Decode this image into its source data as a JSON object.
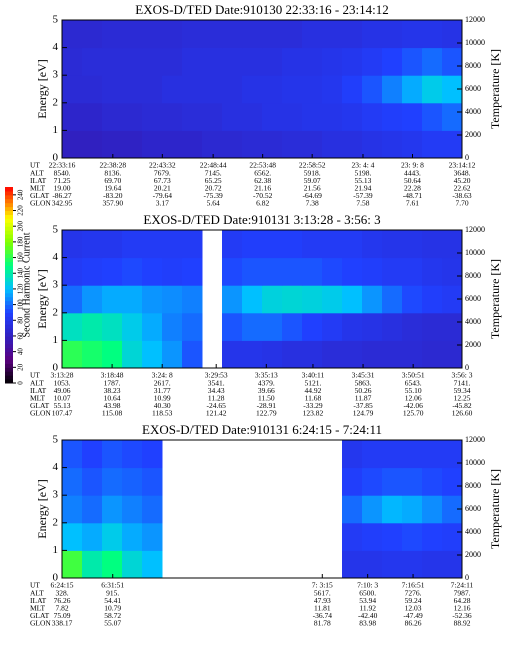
{
  "chart_data": [
    {
      "type": "heatmap",
      "title": "EXOS-D/TED   Date:910130  22:33:16 - 23:14:12",
      "ylabel": "Energy [eV]",
      "y2label": "Temperature [K]",
      "ylim": [
        0,
        5
      ],
      "yticks": [
        0,
        1,
        2,
        3,
        4,
        5
      ],
      "y2lim": [
        0,
        12000
      ],
      "y2ticks": [
        0,
        2000,
        4000,
        6000,
        8000,
        10000,
        12000
      ],
      "z": [
        [
          60,
          60,
          62,
          62,
          65,
          65,
          65,
          68,
          68,
          70,
          70,
          72,
          72,
          75,
          75,
          78,
          80,
          82,
          85,
          85
        ],
        [
          65,
          65,
          68,
          68,
          70,
          70,
          72,
          72,
          75,
          75,
          78,
          78,
          80,
          80,
          82,
          85,
          88,
          90,
          95,
          100
        ],
        [
          70,
          70,
          72,
          72,
          72,
          75,
          75,
          75,
          75,
          78,
          78,
          80,
          80,
          82,
          88,
          95,
          105,
          115,
          125,
          120
        ],
        [
          70,
          72,
          72,
          72,
          72,
          72,
          75,
          75,
          75,
          75,
          75,
          78,
          78,
          80,
          82,
          85,
          90,
          95,
          100,
          95
        ],
        [
          68,
          68,
          70,
          70,
          70,
          70,
          72,
          72,
          72,
          72,
          72,
          72,
          75,
          75,
          75,
          78,
          78,
          80,
          80,
          78
        ]
      ],
      "ephemeris": [
        {
          "label": "UT",
          "values": [
            "22:33:16",
            "22:38:28",
            "22:43:32",
            "22:48:44",
            "22:53:48",
            "22:58:52",
            "23: 4: 4",
            "23: 9: 8",
            "23:14:12"
          ]
        },
        {
          "label": "ALT",
          "values": [
            "8540.",
            "8136.",
            "7679.",
            "7145.",
            "6562.",
            "5918.",
            "5198.",
            "4443.",
            "3648."
          ]
        },
        {
          "label": "ILAT",
          "values": [
            "71.25",
            "69.70",
            "67.73",
            "65.25",
            "62.38",
            "59.07",
            "55.13",
            "50.64",
            "45.20"
          ]
        },
        {
          "label": "MLT",
          "values": [
            "19.00",
            "19.64",
            "20.21",
            "20.72",
            "21.16",
            "21.56",
            "21.94",
            "22.28",
            "22.62"
          ]
        },
        {
          "label": "GLAT",
          "values": [
            "-86.27",
            "-83.20",
            "-79.64",
            "-75.39",
            "-70.52",
            "-64.69",
            "-57.39",
            "-48.71",
            "-38.63"
          ]
        },
        {
          "label": "GLON",
          "values": [
            "342.95",
            "357.90",
            "3.17",
            "5.64",
            "6.82",
            "7.38",
            "7.58",
            "7.61",
            "7.70"
          ]
        }
      ]
    },
    {
      "type": "heatmap",
      "title": "EXOS-D/TED   Date:910131   3:13:28 - 3:56: 3",
      "ylabel": "Energy [eV]",
      "y2label": "Temperature [K]",
      "ylim": [
        0,
        5
      ],
      "yticks": [
        0,
        1,
        2,
        3,
        4,
        5
      ],
      "y2lim": [
        0,
        12000
      ],
      "y2ticks": [
        0,
        2000,
        4000,
        6000,
        8000,
        10000,
        12000
      ],
      "z": [
        [
          160,
          155,
          150,
          130,
          120,
          110,
          95,
          null,
          80,
          80,
          78,
          75,
          75,
          72,
          72,
          70,
          70,
          70,
          68,
          68
        ],
        [
          135,
          140,
          135,
          125,
          115,
          105,
          100,
          null,
          95,
          100,
          100,
          95,
          90,
          85,
          80,
          78,
          75,
          72,
          70,
          70
        ],
        [
          100,
          110,
          115,
          115,
          110,
          108,
          105,
          null,
          110,
          120,
          128,
          130,
          128,
          125,
          120,
          110,
          100,
          92,
          88,
          85
        ],
        [
          85,
          88,
          90,
          92,
          90,
          88,
          90,
          null,
          92,
          95,
          95,
          95,
          95,
          92,
          90,
          88,
          85,
          85,
          82,
          80
        ],
        [
          80,
          82,
          82,
          85,
          85,
          85,
          85,
          null,
          85,
          88,
          88,
          88,
          85,
          85,
          85,
          82,
          80,
          80,
          78,
          78
        ]
      ],
      "ephemeris": [
        {
          "label": "UT",
          "values": [
            "3:13:28",
            "3:18:48",
            "3:24: 8",
            "3:29:53",
            "3:35:13",
            "3:40:11",
            "3:45:31",
            "3:50:51",
            "3:56: 3"
          ]
        },
        {
          "label": "ALT",
          "values": [
            "1053.",
            "1787.",
            "2617.",
            "3541.",
            "4379.",
            "5121.",
            "5863.",
            "6543.",
            "7141."
          ]
        },
        {
          "label": "ILAT",
          "values": [
            "49.06",
            "38.23",
            "31.77",
            "34.43",
            "39.66",
            "44.92",
            "50.26",
            "55.10",
            "59.34"
          ]
        },
        {
          "label": "MLT",
          "values": [
            "10.07",
            "10.64",
            "10.99",
            "11.28",
            "11.50",
            "11.68",
            "11.87",
            "12.06",
            "12.25"
          ]
        },
        {
          "label": "GLAT",
          "values": [
            "55.13",
            "43.98",
            "40.30",
            "-24.65",
            "-28.91",
            "-33.29",
            "-37.85",
            "-42.06",
            "-45.82"
          ]
        },
        {
          "label": "GLON",
          "values": [
            "107.47",
            "115.08",
            "118.53",
            "121.42",
            "122.79",
            "123.82",
            "124.79",
            "125.70",
            "126.60"
          ]
        }
      ]
    },
    {
      "type": "heatmap",
      "title": "EXOS-D/TED   Date:910131   6:24:15 - 7:24:11",
      "ylabel": "Energy [eV]",
      "y2label": "Temperature [K]",
      "ylim": [
        0,
        5
      ],
      "yticks": [
        0,
        1,
        2,
        3,
        4,
        5
      ],
      "y2lim": [
        0,
        12000
      ],
      "y2ticks": [
        0,
        2000,
        4000,
        6000,
        8000,
        10000,
        12000
      ],
      "z": [
        [
          165,
          140,
          150,
          130,
          120,
          null,
          null,
          null,
          null,
          null,
          null,
          null,
          null,
          null,
          80,
          80,
          82,
          82,
          80,
          80
        ],
        [
          120,
          115,
          125,
          115,
          110,
          null,
          null,
          null,
          null,
          null,
          null,
          null,
          null,
          null,
          85,
          88,
          90,
          92,
          90,
          88
        ],
        [
          105,
          100,
          110,
          105,
          100,
          null,
          null,
          null,
          null,
          null,
          null,
          null,
          null,
          null,
          100,
          110,
          118,
          115,
          108,
          100
        ],
        [
          100,
          95,
          100,
          98,
          95,
          null,
          null,
          null,
          null,
          null,
          null,
          null,
          null,
          null,
          88,
          92,
          95,
          95,
          92,
          90
        ],
        [
          95,
          90,
          95,
          92,
          90,
          null,
          null,
          null,
          null,
          null,
          null,
          null,
          null,
          null,
          82,
          85,
          85,
          85,
          85,
          85
        ]
      ],
      "ephemeris": [
        {
          "label": "UT",
          "values": [
            "6:24:15",
            "6:31:51",
            "7: 3:15",
            "7:10: 3",
            "7:16:51",
            "7:24:11"
          ]
        },
        {
          "label": "ALT",
          "values": [
            "328.",
            "915.",
            "5617.",
            "6500.",
            "7276.",
            "7987."
          ]
        },
        {
          "label": "ILAT",
          "values": [
            "76.26",
            "54.41",
            "47.93",
            "53.94",
            "59.24",
            "64.28"
          ]
        },
        {
          "label": "MLT",
          "values": [
            "7.82",
            "10.79",
            "11.81",
            "11.92",
            "12.03",
            "12.16"
          ]
        },
        {
          "label": "GLAT",
          "values": [
            "75.09",
            "58.72",
            "-36.74",
            "-42.40",
            "-47.49",
            "-52.36"
          ]
        },
        {
          "label": "GLON",
          "values": [
            "338.17",
            "55.07",
            "81.78",
            "83.98",
            "86.26",
            "88.92"
          ]
        }
      ]
    },
    {
      "type": "colorbar",
      "label": "Second Harmonic Current",
      "ylim": [
        0,
        250
      ],
      "yticks": [
        0,
        20,
        40,
        60,
        80,
        100,
        120,
        140,
        160,
        180,
        200,
        220,
        240
      ]
    }
  ]
}
